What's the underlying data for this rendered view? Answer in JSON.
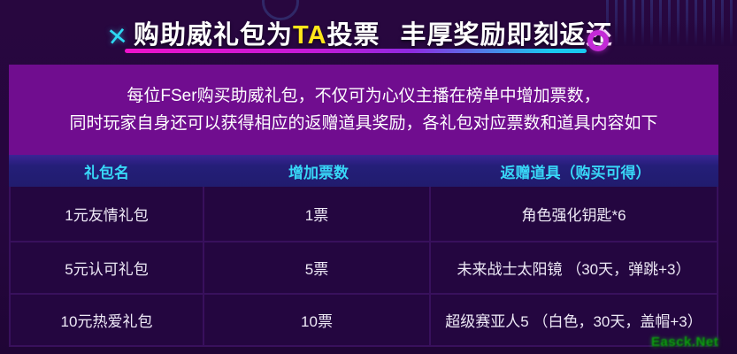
{
  "banner": {
    "x_icon": "✕",
    "title_pre": "购助威礼包为",
    "title_highlight": "TA",
    "title_mid": "投票",
    "title_post": "丰厚奖励即刻返还"
  },
  "intro": {
    "line1": "每位FSer购买助威礼包，不仅可为心仪主播在榜单中增加票数，",
    "line2": "同时玩家自身还可以获得相应的返赠道具奖励，各礼包对应票数和道具内容如下"
  },
  "chart_data": {
    "type": "table",
    "title": "购助威礼包为TA投票 丰厚奖励即刻返还",
    "columns": [
      "礼包名",
      "增加票数",
      "返赠道具（购买可得）"
    ],
    "rows": [
      [
        "1元友情礼包",
        "1票",
        "角色强化钥匙*6"
      ],
      [
        "5元认可礼包",
        "5票",
        "未来战士太阳镜 （30天，弹跳+3）"
      ],
      [
        "10元热爱礼包",
        "10票",
        "超级赛亚人5 （白色，30天，盖帽+3）"
      ]
    ]
  },
  "watermark": "Easck.Net",
  "colors": {
    "background": "#25063e",
    "intro_box": "#700d8f",
    "header_bg": "#241e78",
    "header_text": "#38d7f7",
    "row_bg": "#240640",
    "grid_line": "#38105c",
    "title_highlight": "#ffe71a",
    "accent_cyan": "#2ed9f3",
    "accent_magenta": "#c32ad6",
    "underline_left": "#ee13cb",
    "underline_right": "#19c9ef",
    "watermark_green": "#0e9c12"
  }
}
